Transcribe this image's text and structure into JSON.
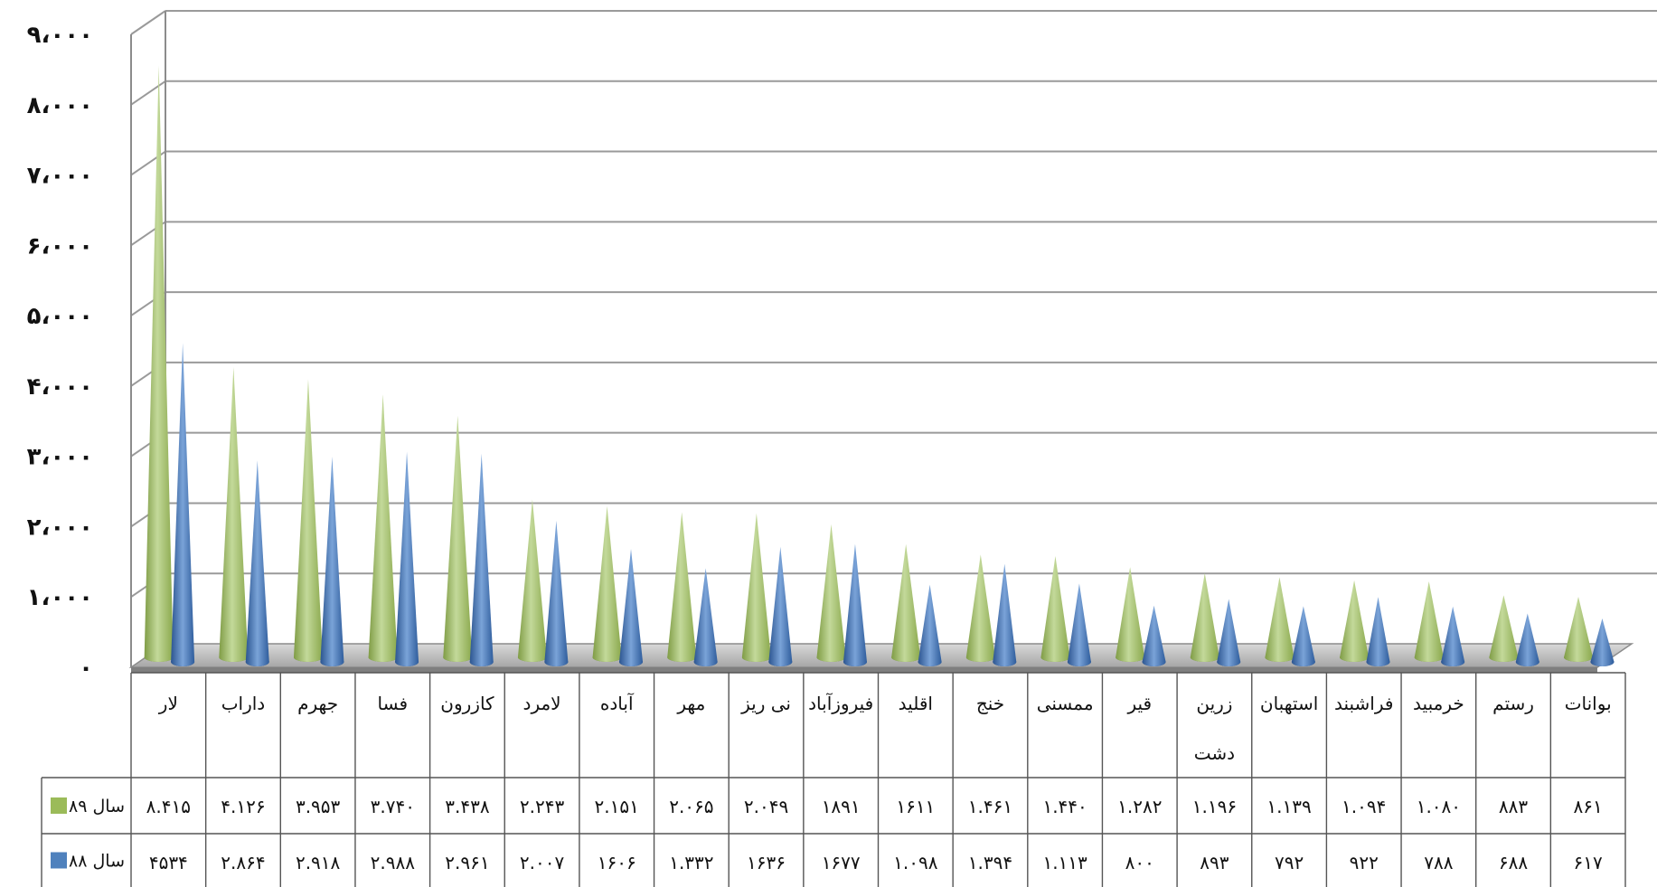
{
  "chart_data": {
    "type": "bar",
    "title": "",
    "xlabel": "",
    "ylabel": "",
    "ylim": [
      0,
      9000
    ],
    "y_tick_labels": [
      "۰",
      "۱،۰۰۰",
      "۲،۰۰۰",
      "۳،۰۰۰",
      "۴،۰۰۰",
      "۵،۰۰۰",
      "۶،۰۰۰",
      "۷،۰۰۰",
      "۸،۰۰۰",
      "۹،۰۰۰"
    ],
    "grid": true,
    "legend_position": "left, inside data table",
    "categories": [
      [
        "لار"
      ],
      [
        "داراب"
      ],
      [
        "جهرم"
      ],
      [
        "فسا"
      ],
      [
        "کازرون"
      ],
      [
        "لامرد"
      ],
      [
        "آباده"
      ],
      [
        "مهر"
      ],
      [
        "نی ریز"
      ],
      [
        "فیروزآباد"
      ],
      [
        "اقلید"
      ],
      [
        "خنج"
      ],
      [
        "ممسنی"
      ],
      [
        "قیر"
      ],
      [
        "زرین",
        "دشت"
      ],
      [
        "استهبان"
      ],
      [
        "فراشبند"
      ],
      [
        "خرمبید"
      ],
      [
        "رستم"
      ],
      [
        "بوانات"
      ]
    ],
    "series": [
      {
        "name": "سال ۸۹",
        "color": "#9bbb59",
        "values": [
          8415,
          4126,
          3953,
          3740,
          3438,
          2243,
          2151,
          2065,
          2049,
          1891,
          1611,
          1461,
          1440,
          1282,
          1196,
          1139,
          1094,
          1080,
          883,
          861
        ],
        "labels": [
          "۸.۴۱۵",
          "۴.۱۲۶",
          "۳.۹۵۳",
          "۳.۷۴۰",
          "۳.۴۳۸",
          "۲.۲۴۳",
          "۲.۱۵۱",
          "۲.۰۶۵",
          "۲.۰۴۹",
          "۱۸۹۱",
          "۱۶۱۱",
          "۱.۴۶۱",
          "۱.۴۴۰",
          "۱.۲۸۲",
          "۱.۱۹۶",
          "۱.۱۳۹",
          "۱.۰۹۴",
          "۱.۰۸۰",
          "۸۸۳",
          "۸۶۱"
        ]
      },
      {
        "name": "سال ۸۸",
        "color": "#4f81bd",
        "values": [
          4534,
          2864,
          2918,
          2988,
          2961,
          2007,
          1606,
          1332,
          1636,
          1677,
          1098,
          1394,
          1113,
          800,
          893,
          792,
          922,
          788,
          688,
          617
        ],
        "labels": [
          "۴۵۳۴",
          "۲.۸۶۴",
          "۲.۹۱۸",
          "۲.۹۸۸",
          "۲.۹۶۱",
          "۲.۰۰۷",
          "۱۶۰۶",
          "۱.۳۳۲",
          "۱۶۳۶",
          "۱۶۷۷",
          "۱.۰۹۸",
          "۱.۳۹۴",
          "۱.۱۱۳",
          "۸۰۰",
          "۸۹۳",
          "۷۹۲",
          "۹۲۲",
          "۷۸۸",
          "۶۸۸",
          "۶۱۷"
        ]
      }
    ]
  }
}
